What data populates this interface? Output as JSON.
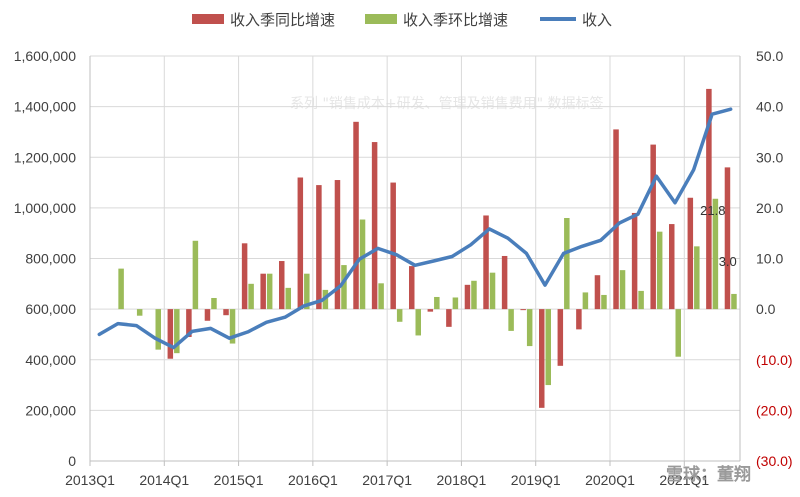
{
  "watermark": {
    "text": "系列 \"销售成本+研发、管理及销售费用\" 数据标签",
    "corner": "雪球：董翔"
  },
  "chart_data": {
    "type": "bar",
    "categories": [
      "2013Q1",
      "2013Q2",
      "2013Q3",
      "2013Q4",
      "2014Q1",
      "2014Q2",
      "2014Q3",
      "2014Q4",
      "2015Q1",
      "2015Q2",
      "2015Q3",
      "2015Q4",
      "2016Q1",
      "2016Q2",
      "2016Q3",
      "2016Q4",
      "2017Q1",
      "2017Q2",
      "2017Q3",
      "2017Q4",
      "2018Q1",
      "2018Q2",
      "2018Q3",
      "2018Q4",
      "2019Q1",
      "2019Q2",
      "2019Q3",
      "2019Q4",
      "2020Q1",
      "2020Q2",
      "2020Q3",
      "2020Q4",
      "2021Q1",
      "2021Q2",
      "2021Q3"
    ],
    "x_tick_labels": [
      "2013Q1",
      "2014Q1",
      "2015Q1",
      "2016Q1",
      "2017Q1",
      "2018Q1",
      "2019Q1",
      "2020Q1",
      "2021Q1"
    ],
    "left_ticks": [
      "0",
      "200,000",
      "400,000",
      "600,000",
      "800,000",
      "1,000,000",
      "1,200,000",
      "1,400,000",
      "1,600,000"
    ],
    "right_ticks": [
      "(30.0)",
      "(20.0)",
      "(10.0)",
      "0.0",
      "10.0",
      "20.0",
      "30.0",
      "40.0",
      "50.0"
    ],
    "ylim_left": [
      0,
      1600000
    ],
    "ylim_right": [
      -30,
      50
    ],
    "series": [
      {
        "name": "收入季同比增速",
        "type": "bar",
        "axis": "right",
        "color": "#c0504d",
        "values": [
          null,
          null,
          null,
          null,
          -9.8,
          -5.5,
          -2.3,
          -1.2,
          13.0,
          7.0,
          9.5,
          26.0,
          24.5,
          25.5,
          37.0,
          33.0,
          25.0,
          8.5,
          -0.5,
          -3.5,
          4.8,
          18.5,
          10.5,
          -0.2,
          -19.5,
          -11.2,
          -4.0,
          6.7,
          35.5,
          19.0,
          32.5,
          16.8,
          22.0,
          43.5,
          28.0
        ]
      },
      {
        "name": "收入季环比增速",
        "type": "bar",
        "axis": "right",
        "color": "#9bbb59",
        "values": [
          null,
          8.0,
          -1.3,
          -8.0,
          -8.7,
          13.5,
          2.2,
          -6.8,
          5.0,
          7.0,
          4.2,
          7.0,
          3.8,
          8.7,
          17.7,
          5.1,
          -2.5,
          -5.2,
          2.4,
          2.3,
          5.6,
          7.2,
          -4.3,
          -7.3,
          -15.0,
          18.0,
          3.3,
          2.8,
          7.7,
          3.6,
          15.3,
          -9.4,
          12.4,
          21.8,
          3.0
        ]
      },
      {
        "name": "收入",
        "type": "line",
        "axis": "left",
        "color": "#4a7ebb",
        "values": [
          500000,
          543000,
          535000,
          485000,
          448000,
          512000,
          524000,
          485000,
          510000,
          548000,
          568000,
          612000,
          635000,
          692000,
          797000,
          840000,
          815000,
          773000,
          790000,
          808000,
          854000,
          917000,
          880000,
          820000,
          695000,
          820000,
          848000,
          872000,
          940000,
          975000,
          1125000,
          1020000,
          1150000,
          1370000,
          1390000
        ]
      }
    ],
    "data_labels": [
      {
        "category": "2021Q2",
        "text": "21.8"
      },
      {
        "category": "2021Q3",
        "text": "3.0"
      }
    ]
  }
}
